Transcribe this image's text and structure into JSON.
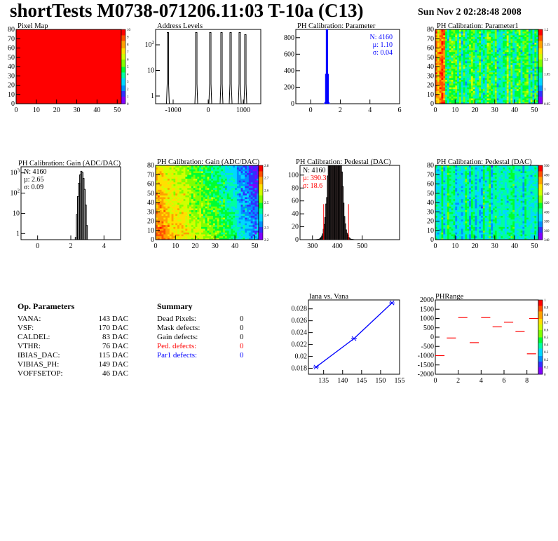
{
  "header": {
    "title": "shortTests M0738-071206.11:03 T-10a (C13)",
    "date": "Sun Nov  2 02:28:48 2008"
  },
  "colors": {
    "red_text": "#ff0000",
    "blue_text": "#0000ff",
    "palette": [
      "#8000ff",
      "#3030ff",
      "#0090ff",
      "#00d8ff",
      "#00ffa0",
      "#00ff30",
      "#80ff00",
      "#d0ff00",
      "#ffe000",
      "#ffa000",
      "#ff5000",
      "#ff0000"
    ]
  },
  "chart_data": [
    {
      "id": "pixelmap",
      "type": "heatmap",
      "title": "Pixel Map",
      "xlim": [
        0,
        52
      ],
      "ylim": [
        0,
        80
      ],
      "xticks": [
        "0",
        "10",
        "20",
        "30",
        "40",
        "50"
      ],
      "yticks": [
        "0",
        "10",
        "20",
        "30",
        "40",
        "50",
        "60",
        "70",
        "80"
      ],
      "zlim": [
        0,
        10
      ],
      "zticks": [
        "10",
        "9",
        "8",
        "7",
        "6",
        "5",
        "4",
        "3",
        "2",
        "1",
        "0"
      ],
      "value": 10
    },
    {
      "id": "addr",
      "type": "bar",
      "title": "Address Levels",
      "yscale": "log",
      "xlim": [
        -1500,
        1500
      ],
      "ylim": [
        0.5,
        400
      ],
      "xticks": [
        "-1000",
        "0",
        "1000"
      ],
      "yticks": [
        "1",
        "10",
        "10^2"
      ],
      "peaks": [
        [
          -1150,
          300
        ],
        [
          -340,
          300
        ],
        [
          60,
          300
        ],
        [
          380,
          300
        ],
        [
          640,
          300
        ],
        [
          900,
          300
        ],
        [
          1060,
          250
        ]
      ]
    },
    {
      "id": "phpar",
      "type": "bar",
      "title": "PH Calibration: Parameter",
      "xlim": [
        -1,
        6
      ],
      "ylim": [
        0,
        900
      ],
      "xticks": [
        "0",
        "2",
        "4",
        "6"
      ],
      "yticks": [
        "0",
        "200",
        "400",
        "600",
        "800"
      ],
      "stats": [
        "N: 4160",
        "µ: 1.10",
        "σ: 0.04"
      ],
      "mean": 1.1,
      "sigma": 0.04,
      "entries": 4160
    },
    {
      "id": "phpar1",
      "type": "heatmap",
      "title": "PH Calibration: Parameter1",
      "xlim": [
        0,
        52
      ],
      "ylim": [
        0,
        80
      ],
      "xticks": [
        "0",
        "10",
        "20",
        "30",
        "40",
        "50"
      ],
      "yticks": [
        "0",
        "10",
        "20",
        "30",
        "40",
        "50",
        "60",
        "70",
        "80"
      ],
      "zlim": [
        0.95,
        1.2
      ],
      "zticks": [
        "1.2",
        "1.15",
        "1.1",
        "1.05",
        "1",
        "0.95"
      ]
    },
    {
      "id": "gain",
      "type": "bar",
      "title": "PH Calibration: Gain (ADC/DAC)",
      "yscale": "log",
      "xlim": [
        -1,
        5
      ],
      "ylim": [
        0.5,
        2000
      ],
      "xticks": [
        "0",
        "2",
        "4"
      ],
      "yticks": [
        "1",
        "10",
        "10^2",
        "10^3"
      ],
      "stats": [
        "N: 4160",
        "µ: 2.65",
        "σ: 0.09"
      ],
      "mean": 2.65,
      "sigma": 0.09,
      "entries": 4160
    },
    {
      "id": "gainmap",
      "type": "heatmap",
      "title": "PH Calibration: Gain (ADC/DAC)",
      "xlim": [
        0,
        52
      ],
      "ylim": [
        0,
        80
      ],
      "xticks": [
        "0",
        "10",
        "20",
        "30",
        "40",
        "50"
      ],
      "yticks": [
        "0",
        "10",
        "20",
        "30",
        "40",
        "50",
        "60",
        "70",
        "80"
      ],
      "zlim": [
        2.1,
        2.8
      ],
      "zticks": [
        "2.8",
        "2.7",
        "2.6",
        "2.5",
        "2.4",
        "2.3",
        "2.2"
      ]
    },
    {
      "id": "ped",
      "type": "bar",
      "title": "PH Calibration: Pedestal (DAC)",
      "xlim": [
        250,
        650
      ],
      "ylim": [
        0,
        115
      ],
      "xticks": [
        "300",
        "400",
        "500"
      ],
      "yticks": [
        "0",
        "20",
        "40",
        "60",
        "80",
        "100"
      ],
      "stats": [
        "N: 4160",
        "µ: 390.3",
        "σ: 18.6"
      ],
      "mean": 390.3,
      "sigma": 18.6,
      "entries": 4160,
      "cuts": [
        345,
        445
      ]
    },
    {
      "id": "pedmap",
      "type": "heatmap",
      "title": "PH Calibration: Pedestal (DAC)",
      "xlim": [
        0,
        52
      ],
      "ylim": [
        0,
        80
      ],
      "xticks": [
        "0",
        "10",
        "20",
        "30",
        "40",
        "50"
      ],
      "yticks": [
        "0",
        "10",
        "20",
        "30",
        "40",
        "50",
        "60",
        "70",
        "80"
      ],
      "zlim": [
        340,
        500
      ],
      "zticks": [
        "500",
        "480",
        "460",
        "440",
        "420",
        "400",
        "380",
        "360",
        "340"
      ]
    },
    {
      "id": "iana",
      "type": "line",
      "title": "Iana vs. Vana",
      "xlim": [
        131,
        155
      ],
      "ylim": [
        0.017,
        0.0295
      ],
      "xticks": [
        "135",
        "140",
        "145",
        "150",
        "155"
      ],
      "yticks": [
        "0.018",
        "0.02",
        "0.022",
        "0.024",
        "0.026",
        "0.028"
      ],
      "x": [
        133,
        143,
        153
      ],
      "y": [
        0.0182,
        0.023,
        0.029
      ]
    },
    {
      "id": "phrange",
      "type": "heatmap",
      "title": "PHRange",
      "xlim": [
        0,
        9
      ],
      "ylim": [
        -2000,
        2000
      ],
      "xticks": [
        "0",
        "2",
        "4",
        "6",
        "8"
      ],
      "yticks": [
        "-2000",
        "-1500",
        "-1000",
        "-500",
        "0",
        "500",
        "1000",
        "1500",
        "2000"
      ],
      "zlim": [
        0,
        1
      ],
      "zticks": [
        "1",
        "0.9",
        "0.8",
        "0.7",
        "0.6",
        "0.5",
        "0.4",
        "0.3",
        "0.2",
        "0.1",
        "0"
      ],
      "segments": [
        [
          0,
          -1000
        ],
        [
          1,
          -50
        ],
        [
          2,
          1050
        ],
        [
          3,
          -300
        ],
        [
          4,
          1050
        ],
        [
          5,
          550
        ],
        [
          6,
          800
        ],
        [
          7,
          300
        ],
        [
          8,
          -900
        ],
        [
          8.2,
          1000
        ]
      ]
    }
  ],
  "op_params": {
    "title": "Op. Parameters",
    "rows": [
      {
        "name": "VANA:",
        "value": "143 DAC"
      },
      {
        "name": "VSF:",
        "value": "170 DAC"
      },
      {
        "name": "CALDEL:",
        "value": "83 DAC"
      },
      {
        "name": "VTHR:",
        "value": "76 DAC"
      },
      {
        "name": "IBIAS_DAC:",
        "value": "115 DAC"
      },
      {
        "name": "VIBIAS_PH:",
        "value": "149 DAC"
      },
      {
        "name": "VOFFSETOP:",
        "value": "46 DAC"
      }
    ]
  },
  "summary": {
    "title": "Summary",
    "rows": [
      {
        "name": "Dead Pixels:",
        "value": "0",
        "color": "#000000"
      },
      {
        "name": "Mask defects:",
        "value": "0",
        "color": "#000000"
      },
      {
        "name": "Gain defects:",
        "value": "0",
        "color": "#000000"
      },
      {
        "name": "Ped. defects:",
        "value": "0",
        "color": "#ff0000"
      },
      {
        "name": "Par1 defects:",
        "value": "0",
        "color": "#0000ff"
      }
    ]
  }
}
